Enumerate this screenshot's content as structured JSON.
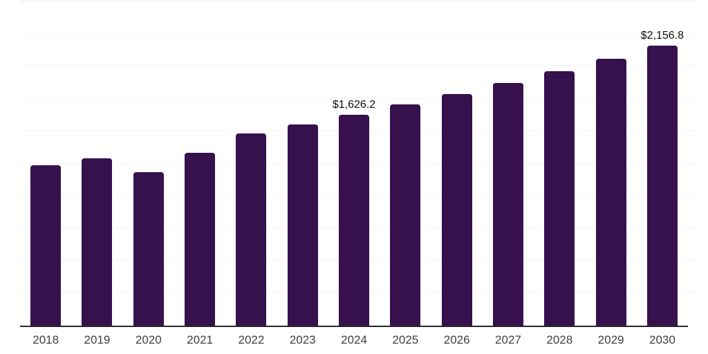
{
  "chart": {
    "background": "#ffffff",
    "bar_color": "#36114d",
    "gridline_color": "#f4f4f4",
    "top_gridline_color": "#e9e9e9",
    "axis_line_color": "#262626",
    "tick_label_color": "#3f3f3f",
    "data_label_color": "#0d0d0d"
  },
  "chart_data": {
    "type": "bar",
    "title": "",
    "xlabel": "",
    "ylabel": "",
    "categories": [
      "2018",
      "2019",
      "2020",
      "2021",
      "2022",
      "2023",
      "2024",
      "2025",
      "2026",
      "2027",
      "2028",
      "2029",
      "2030"
    ],
    "values": [
      1239,
      1292,
      1181,
      1335,
      1483,
      1552,
      1626.2,
      1704.6,
      1786.8,
      1872.9,
      1963.2,
      2057.8,
      2156.8
    ],
    "labeled_points": [
      {
        "category": "2024",
        "label": "$1,626.2"
      },
      {
        "category": "2030",
        "label": "$2,156.8"
      }
    ],
    "ylim": [
      0,
      2500
    ],
    "gridline_interval": 250,
    "grid": true,
    "y_axis_labels_visible": false,
    "legend": false,
    "legend_position": "none"
  }
}
